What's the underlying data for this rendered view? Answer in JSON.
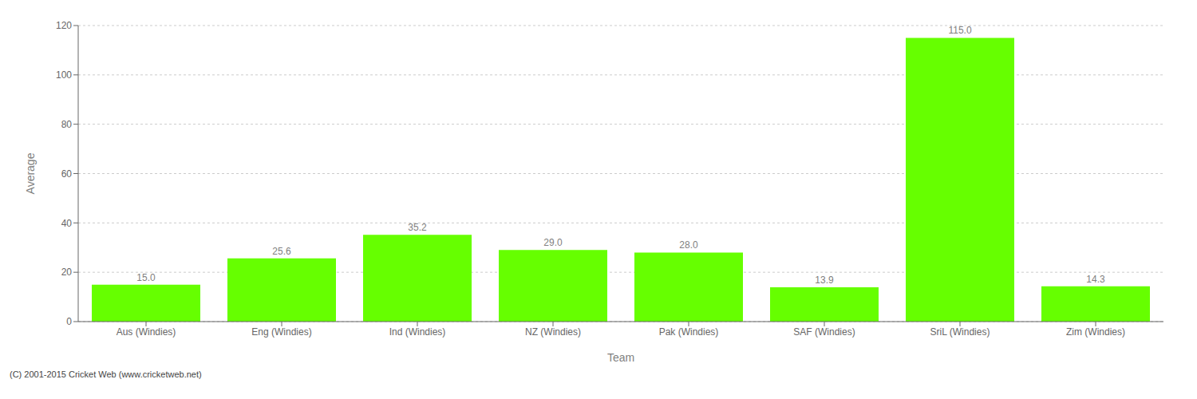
{
  "chart_data": {
    "type": "bar",
    "xlabel": "Team",
    "ylabel": "Average",
    "categories": [
      "Aus (Windies)",
      "Eng (Windies)",
      "Ind (Windies)",
      "NZ (Windies)",
      "Pak (Windies)",
      "SAF (Windies)",
      "SriL (Windies)",
      "Zim (Windies)"
    ],
    "values": [
      15.0,
      25.6,
      35.2,
      29.0,
      28.0,
      13.9,
      115.0,
      14.3
    ],
    "value_labels": [
      "15.0",
      "25.6",
      "35.2",
      "29.0",
      "28.0",
      "13.9",
      "115.0",
      "14.3"
    ],
    "data_labels": true,
    "color": "#66ff00",
    "ylim": [
      0,
      120
    ],
    "yticks": [
      0,
      20,
      40,
      60,
      80,
      100,
      120
    ],
    "grid": true,
    "annotations": [
      "(C) 2001-2015 Cricket Web (www.cricketweb.net)"
    ]
  }
}
